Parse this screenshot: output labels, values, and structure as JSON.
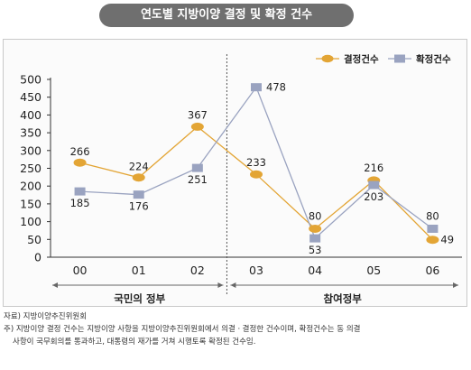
{
  "title": "연도별 지방이양 결정 및 확정 건수",
  "chart_data": {
    "type": "line",
    "categories": [
      "00",
      "01",
      "02",
      "03",
      "04",
      "05",
      "06"
    ],
    "series": [
      {
        "name": "결정건수",
        "values": [
          266,
          224,
          367,
          233,
          80,
          216,
          49
        ],
        "color": "#e3a535",
        "marker": "circle"
      },
      {
        "name": "확정건수",
        "values": [
          185,
          176,
          251,
          478,
          53,
          203,
          80
        ],
        "color": "#9aa3c0",
        "marker": "square"
      }
    ],
    "ylim": [
      0,
      500
    ],
    "yticks": [
      "0",
      "50",
      "100",
      "150",
      "200",
      "250",
      "300",
      "350",
      "400",
      "450",
      "500"
    ],
    "grid": false,
    "legend": "top-right",
    "period_labels": [
      "국민의 정부",
      "참여정부"
    ]
  },
  "notes": {
    "source": "자료) 지방이양추진위원회",
    "note_line1": "주)  지방이양 결정 건수는 지방이양 사항을 지방이양추진위원회에서 의결ㆍ결정한 건수이며, 확정건수는 동 의결",
    "note_line2": "사항이 국무회의를 통과하고, 대통령의 재가를 거쳐 시행토록 확정된 건수임."
  }
}
